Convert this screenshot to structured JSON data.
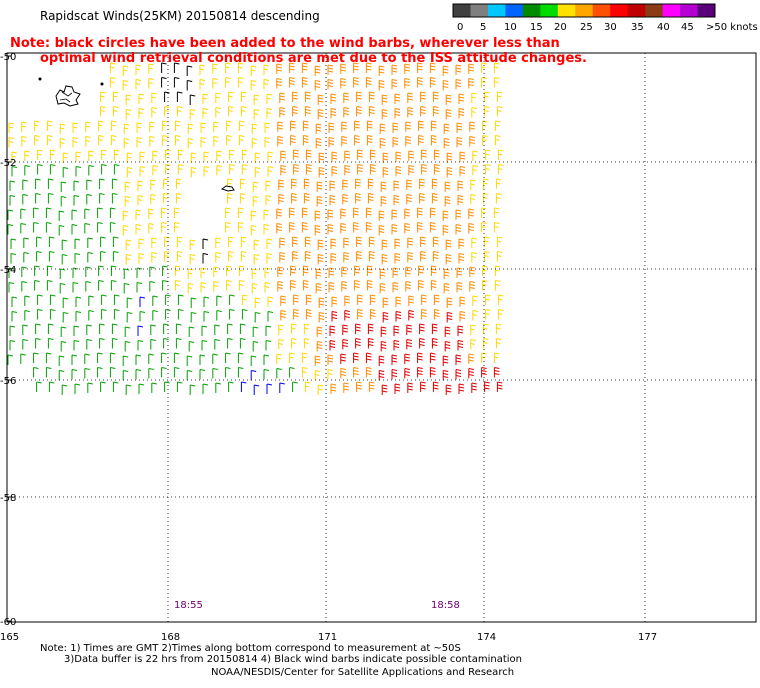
{
  "header": {
    "title": "Rapidscat Winds(25KM) 20150814 descending",
    "note_line1": "Note: black circles have been added to the wind barbs, wherever less than",
    "note_line2": "optimal wind retrieval conditions are met due to the ISS attitude changes."
  },
  "legend": {
    "labels": [
      "0",
      "5",
      "10",
      "15",
      "20",
      "25",
      "30",
      "35",
      "40",
      "45",
      ">50 knots"
    ],
    "colors": [
      "#404040",
      "#7f7f7f",
      "#00c8ff",
      "#0064ff",
      "#008c00",
      "#00dc00",
      "#ffe000",
      "#ffa500",
      "#ff5000",
      "#ff0000",
      "#c00000",
      "#8c3c14",
      "#ff00ff",
      "#b400d2",
      "#5a0078"
    ]
  },
  "map": {
    "lat_labels": [
      "-50",
      "-52",
      "-54",
      "-56",
      "-58",
      "-60"
    ],
    "lon_labels": [
      "165",
      "168",
      "171",
      "174",
      "177"
    ],
    "time_labels": [
      "18:55",
      "18:58"
    ],
    "time_color": "#6b006b",
    "barb_colors": {
      "calm": "#000000",
      "blue": "#0000ff",
      "green": "#00a000",
      "yellow": "#ffd700",
      "orange": "#ff8c00",
      "red": "#e00000",
      "note": "#ff0000"
    }
  },
  "footer": {
    "line1": "Note: 1) Times are GMT 2)Times along bottom correspond to measurement at ~50S",
    "line2": "3)Data buffer is 22 hrs from 20150814 4) Black wind barbs indicate possible contamination",
    "line3": "NOAA/NESDIS/Center for Satellite Applications and Research"
  }
}
